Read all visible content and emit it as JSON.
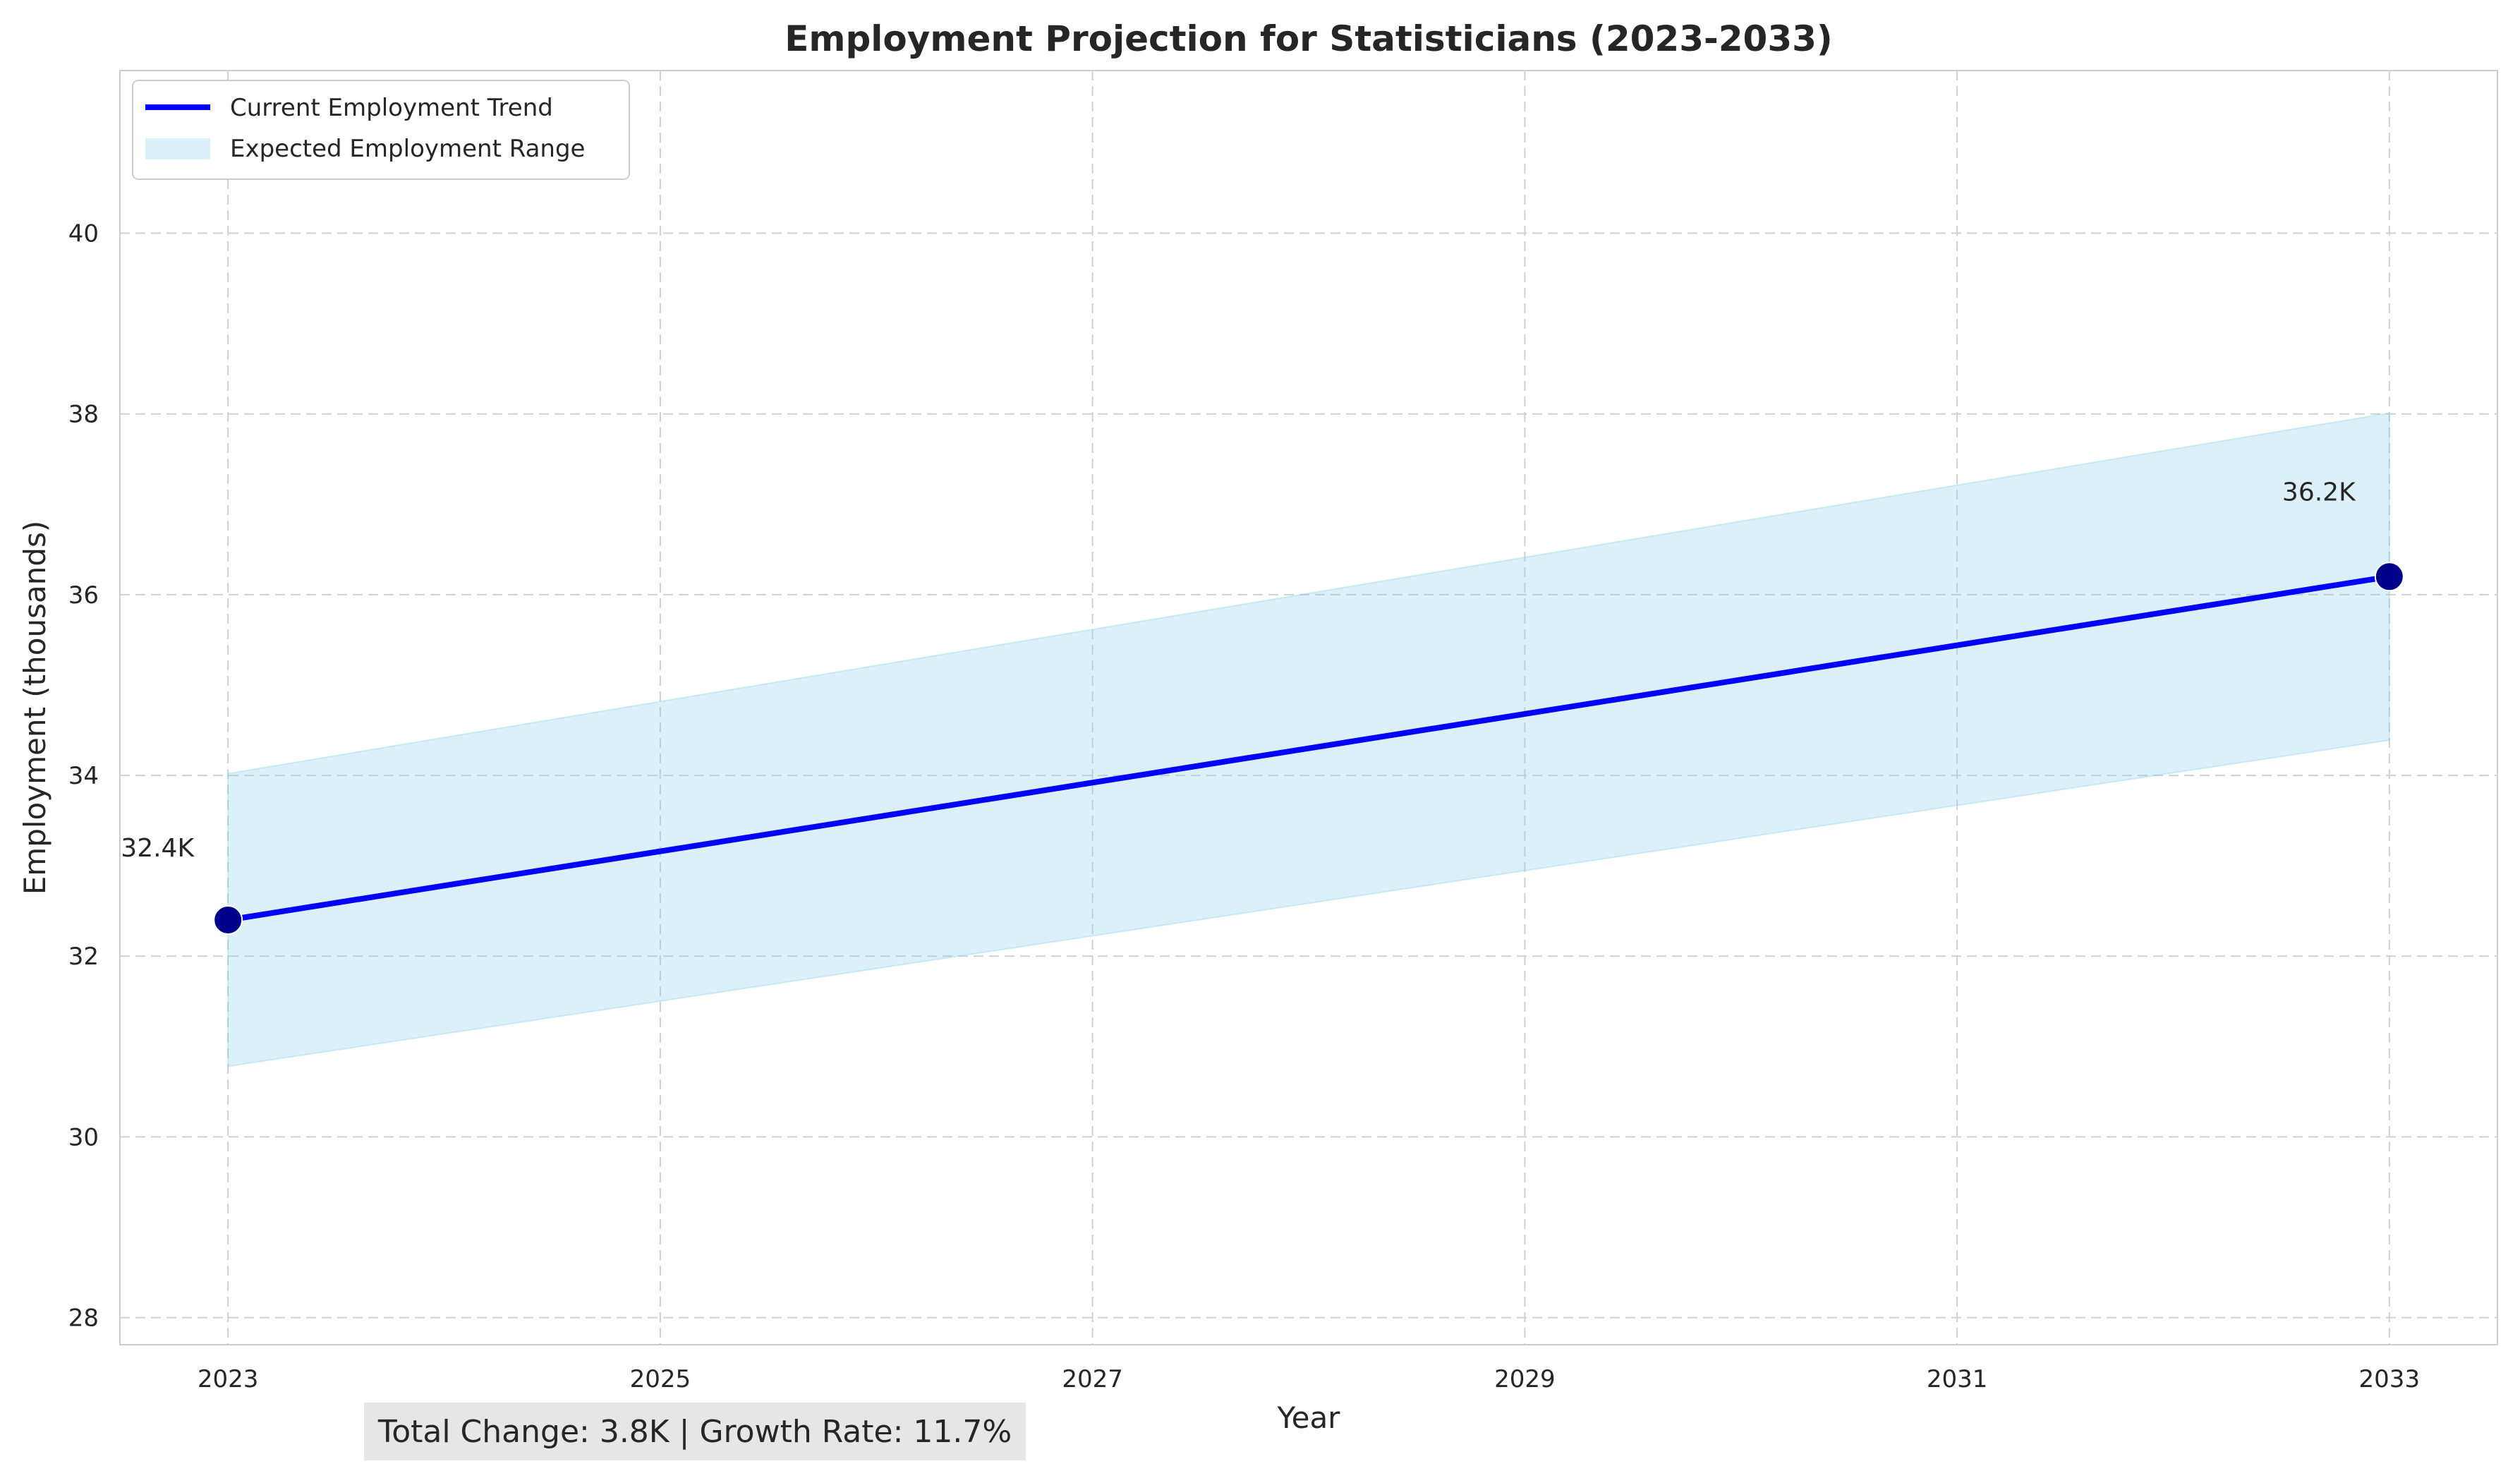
{
  "chart_data": {
    "type": "line",
    "title": "Employment Projection for Statisticians (2023-2033)",
    "xlabel": "Year",
    "ylabel": "Employment (thousands)",
    "xlim": [
      2022.5,
      2033.5
    ],
    "ylim": [
      27.7,
      41.8
    ],
    "xticks": [
      2023,
      2025,
      2027,
      2029,
      2031,
      2033
    ],
    "yticks": [
      28,
      30,
      32,
      34,
      36,
      38,
      40
    ],
    "grid": true,
    "legend_position": "top-left",
    "series": [
      {
        "name": "Current Employment Trend",
        "color": "#0000ff",
        "x": [
          2023,
          2033
        ],
        "values": [
          32.4,
          36.2
        ]
      }
    ],
    "range": {
      "name": "Expected Employment Range",
      "color": "#87ceeb",
      "x": [
        2023,
        2033
      ],
      "lower": [
        30.78,
        34.39
      ],
      "upper": [
        34.02,
        38.01
      ]
    },
    "points": [
      {
        "x": 2023,
        "y": 32.4,
        "label": "32.4K"
      },
      {
        "x": 2033,
        "y": 36.2,
        "label": "36.2K"
      }
    ],
    "marker_color": "#00008b",
    "summary": "Total Change: 3.8K | Growth Rate: 11.7%"
  }
}
